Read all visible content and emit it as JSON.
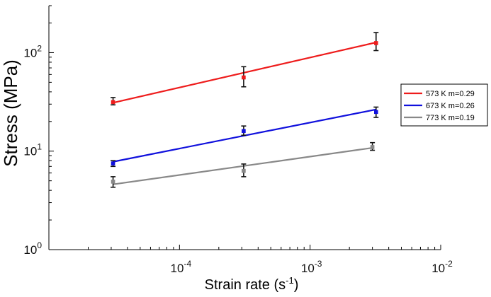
{
  "chart_data": {
    "type": "line",
    "xscale": "log",
    "yscale": "log",
    "xlabel_base": "Strain rate (s",
    "xlabel_sup": "-1",
    "xlabel_end": ")",
    "ylabel": "Stress (MPa)",
    "xlim": [
      1e-05,
      0.01
    ],
    "ylim": [
      1,
      300
    ],
    "x_ticks": [
      {
        "value": 0.0001,
        "base": "10",
        "exp": "-4"
      },
      {
        "value": 0.001,
        "base": "10",
        "exp": "-3"
      },
      {
        "value": 0.01,
        "base": "10",
        "exp": "-2"
      }
    ],
    "y_ticks": [
      {
        "value": 1,
        "base": "10",
        "exp": "0"
      },
      {
        "value": 10,
        "base": "10",
        "exp": "1"
      },
      {
        "value": 100,
        "base": "10",
        "exp": "2"
      }
    ],
    "legend_position": "right",
    "series": [
      {
        "name": "573 K  m=0.29",
        "color": "#ee1c1c",
        "fit": [
          [
            3.1e-05,
            31
          ],
          [
            0.0032,
            127
          ]
        ],
        "points": [
          {
            "x": 3.1e-05,
            "y": 31.5,
            "err_low": 29.5,
            "err_high": 35
          },
          {
            "x": 0.00031,
            "y": 56,
            "err_low": 45,
            "err_high": 72
          },
          {
            "x": 0.0032,
            "y": 125,
            "err_low": 105,
            "err_high": 160
          }
        ]
      },
      {
        "name": "673 K  m=0.26",
        "color": "#1010dd",
        "fit": [
          [
            3.1e-05,
            7.8
          ],
          [
            0.0032,
            26.5
          ]
        ],
        "points": [
          {
            "x": 3.1e-05,
            "y": 7.5,
            "err_low": 7.0,
            "err_high": 8.0
          },
          {
            "x": 0.00031,
            "y": 16,
            "err_low": 14.5,
            "err_high": 18
          },
          {
            "x": 0.0032,
            "y": 25,
            "err_low": 22,
            "err_high": 28
          }
        ]
      },
      {
        "name": "773 K  m=0.19",
        "color": "#888888",
        "fit": [
          [
            3.1e-05,
            4.6
          ],
          [
            0.003,
            10.8
          ]
        ],
        "points": [
          {
            "x": 3.1e-05,
            "y": 4.9,
            "err_low": 4.3,
            "err_high": 5.5
          },
          {
            "x": 0.00031,
            "y": 6.3,
            "err_low": 5.5,
            "err_high": 7.4
          },
          {
            "x": 0.003,
            "y": 11,
            "err_low": 10.2,
            "err_high": 12.2
          }
        ]
      }
    ]
  }
}
